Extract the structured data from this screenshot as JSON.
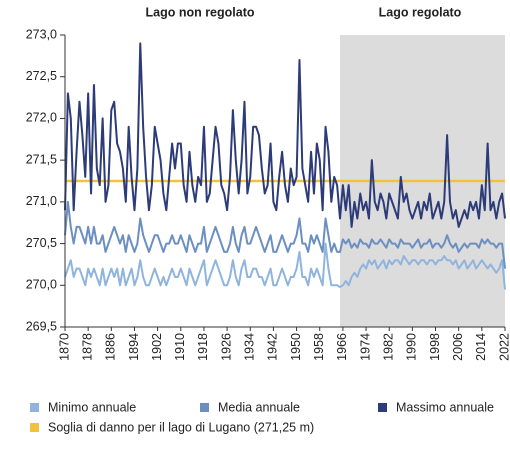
{
  "chart_data": {
    "type": "line",
    "annotations": [
      "Lago non regolato",
      "Lago regolato"
    ],
    "shade_xlim": [
      1965,
      2022
    ],
    "shade_color": "#dcdcdc",
    "xlim": [
      1870,
      2022
    ],
    "xticks": [
      1870,
      1878,
      1886,
      1894,
      1902,
      1910,
      1918,
      1926,
      1934,
      1942,
      1950,
      1958,
      1966,
      1974,
      1982,
      1990,
      1998,
      2006,
      2014,
      2022
    ],
    "ylim": [
      269.5,
      273.0
    ],
    "yticks": [
      {
        "value": 269.5,
        "label": "269,5"
      },
      {
        "value": 270.0,
        "label": "270,0"
      },
      {
        "value": 270.5,
        "label": "270,5"
      },
      {
        "value": 271.0,
        "label": "271,0"
      },
      {
        "value": 271.5,
        "label": "271,5"
      },
      {
        "value": 272.0,
        "label": "272,0"
      },
      {
        "value": 272.5,
        "label": "272,5"
      },
      {
        "value": 273.0,
        "label": "273,0"
      }
    ],
    "threshold": {
      "value": 271.25,
      "color": "#f2c23c",
      "label": "Soglia di danno per il lago di Lugano (271,25 m)"
    },
    "x": [
      1870,
      1871,
      1872,
      1873,
      1874,
      1875,
      1876,
      1877,
      1878,
      1879,
      1880,
      1881,
      1882,
      1883,
      1884,
      1885,
      1886,
      1887,
      1888,
      1889,
      1890,
      1891,
      1892,
      1893,
      1894,
      1895,
      1896,
      1897,
      1898,
      1899,
      1900,
      1901,
      1902,
      1903,
      1904,
      1905,
      1906,
      1907,
      1908,
      1909,
      1910,
      1911,
      1912,
      1913,
      1914,
      1915,
      1916,
      1917,
      1918,
      1919,
      1920,
      1921,
      1922,
      1923,
      1924,
      1925,
      1926,
      1927,
      1928,
      1929,
      1930,
      1931,
      1932,
      1933,
      1934,
      1935,
      1936,
      1937,
      1938,
      1939,
      1940,
      1941,
      1942,
      1943,
      1944,
      1945,
      1946,
      1947,
      1948,
      1949,
      1950,
      1951,
      1952,
      1953,
      1954,
      1955,
      1956,
      1957,
      1958,
      1959,
      1960,
      1961,
      1962,
      1963,
      1964,
      1965,
      1966,
      1967,
      1968,
      1969,
      1970,
      1971,
      1972,
      1973,
      1974,
      1975,
      1976,
      1977,
      1978,
      1979,
      1980,
      1981,
      1982,
      1983,
      1984,
      1985,
      1986,
      1987,
      1988,
      1989,
      1990,
      1991,
      1992,
      1993,
      1994,
      1995,
      1996,
      1997,
      1998,
      1999,
      2000,
      2001,
      2002,
      2003,
      2004,
      2005,
      2006,
      2007,
      2008,
      2009,
      2010,
      2011,
      2012,
      2013,
      2014,
      2015,
      2016,
      2017,
      2018,
      2019,
      2020,
      2021,
      2022
    ],
    "series": [
      {
        "name": "Minimo annuale",
        "color": "#8fb4dd",
        "values": [
          270.1,
          270.2,
          270.3,
          270.1,
          270.2,
          270.2,
          270.1,
          270.0,
          270.2,
          270.1,
          270.2,
          270.1,
          270.0,
          270.2,
          270.0,
          270.1,
          270.2,
          270.1,
          270.2,
          270.0,
          270.2,
          270.0,
          270.1,
          270.2,
          270.0,
          270.1,
          270.3,
          270.1,
          270.0,
          270.0,
          270.1,
          270.2,
          270.1,
          270.0,
          270.1,
          270.0,
          270.1,
          270.2,
          270.1,
          270.1,
          270.2,
          270.1,
          270.0,
          270.2,
          270.1,
          270.0,
          270.1,
          270.2,
          270.3,
          270.0,
          270.1,
          270.2,
          270.3,
          270.2,
          270.1,
          270.0,
          270.0,
          270.1,
          270.3,
          270.1,
          270.0,
          270.2,
          270.3,
          270.1,
          270.1,
          270.2,
          270.2,
          270.1,
          270.1,
          270.0,
          270.1,
          270.2,
          270.0,
          270.0,
          270.1,
          270.2,
          270.1,
          270.0,
          270.1,
          270.1,
          270.2,
          270.4,
          270.1,
          270.1,
          270.0,
          270.2,
          270.1,
          270.2,
          270.1,
          270.0,
          270.5,
          270.2,
          270.0,
          270.0,
          270.0,
          269.98,
          270.0,
          270.05,
          270.0,
          270.1,
          270.15,
          270.1,
          270.2,
          270.25,
          270.2,
          270.3,
          270.25,
          270.3,
          270.2,
          270.25,
          270.3,
          270.2,
          270.3,
          270.25,
          270.3,
          270.3,
          270.25,
          270.35,
          270.3,
          270.25,
          270.3,
          270.3,
          270.25,
          270.3,
          270.3,
          270.25,
          270.3,
          270.3,
          270.25,
          270.3,
          270.3,
          270.35,
          270.3,
          270.3,
          270.25,
          270.3,
          270.2,
          270.25,
          270.3,
          270.2,
          270.25,
          270.3,
          270.2,
          270.25,
          270.3,
          270.25,
          270.2,
          270.25,
          270.2,
          270.15,
          270.2,
          270.3,
          269.95
        ]
      },
      {
        "name": "Media annuale",
        "color": "#6b8fc0",
        "values": [
          270.6,
          271.0,
          270.7,
          270.5,
          270.7,
          270.7,
          270.6,
          270.5,
          270.7,
          270.5,
          270.7,
          270.5,
          270.5,
          270.6,
          270.4,
          270.5,
          270.6,
          270.7,
          270.6,
          270.5,
          270.6,
          270.4,
          270.6,
          270.5,
          270.4,
          270.5,
          270.8,
          270.6,
          270.5,
          270.4,
          270.5,
          270.6,
          270.6,
          270.5,
          270.4,
          270.5,
          270.5,
          270.6,
          270.5,
          270.5,
          270.6,
          270.5,
          270.4,
          270.6,
          270.5,
          270.4,
          270.5,
          270.5,
          270.7,
          270.4,
          270.5,
          270.6,
          270.7,
          270.6,
          270.5,
          270.4,
          270.4,
          270.5,
          270.7,
          270.5,
          270.4,
          270.6,
          270.7,
          270.5,
          270.5,
          270.6,
          270.7,
          270.6,
          270.5,
          270.4,
          270.5,
          270.6,
          270.4,
          270.4,
          270.5,
          270.6,
          270.5,
          270.4,
          270.5,
          270.5,
          270.6,
          270.8,
          270.5,
          270.5,
          270.4,
          270.6,
          270.5,
          270.6,
          270.5,
          270.4,
          270.8,
          270.6,
          270.4,
          270.5,
          270.4,
          270.4,
          270.55,
          270.5,
          270.55,
          270.45,
          270.5,
          270.45,
          270.55,
          270.5,
          270.5,
          270.45,
          270.55,
          270.5,
          270.5,
          270.55,
          270.5,
          270.45,
          270.55,
          270.5,
          270.5,
          270.45,
          270.55,
          270.5,
          270.5,
          270.5,
          270.45,
          270.5,
          270.55,
          270.45,
          270.5,
          270.5,
          270.55,
          270.45,
          270.5,
          270.5,
          270.45,
          270.5,
          270.6,
          270.5,
          270.45,
          270.5,
          270.4,
          270.45,
          270.5,
          270.45,
          270.5,
          270.5,
          270.5,
          270.45,
          270.55,
          270.5,
          270.55,
          270.5,
          270.5,
          270.45,
          270.5,
          270.5,
          270.2
        ]
      },
      {
        "name": "Massimo annuale",
        "color": "#2d3c78",
        "values": [
          270.9,
          272.3,
          272.0,
          270.9,
          271.6,
          272.2,
          271.8,
          271.3,
          272.3,
          271.1,
          272.4,
          271.4,
          271.2,
          272.0,
          271.0,
          271.2,
          272.1,
          272.2,
          271.7,
          271.6,
          271.4,
          271.0,
          271.9,
          271.3,
          270.9,
          271.4,
          272.9,
          271.9,
          271.3,
          270.9,
          271.2,
          271.9,
          271.7,
          271.5,
          271.1,
          270.9,
          271.3,
          271.7,
          271.4,
          271.7,
          271.7,
          271.2,
          271.0,
          271.6,
          271.2,
          271.0,
          271.3,
          271.2,
          271.9,
          271.0,
          271.1,
          271.5,
          271.9,
          271.7,
          271.2,
          271.1,
          270.9,
          271.3,
          272.1,
          271.5,
          271.1,
          271.5,
          272.2,
          271.1,
          271.3,
          271.9,
          271.9,
          271.8,
          271.4,
          271.1,
          271.2,
          271.7,
          271.0,
          270.9,
          271.3,
          271.6,
          271.2,
          271.0,
          271.4,
          271.2,
          271.3,
          272.7,
          271.4,
          271.2,
          271.0,
          271.6,
          271.1,
          271.7,
          271.5,
          270.9,
          271.9,
          271.6,
          271.0,
          271.3,
          271.2,
          270.8,
          271.2,
          270.9,
          271.2,
          270.7,
          271.0,
          270.8,
          271.1,
          270.9,
          271.0,
          270.8,
          271.5,
          271.0,
          270.9,
          271.1,
          271.0,
          270.8,
          271.1,
          271.0,
          270.9,
          270.8,
          271.3,
          271.0,
          271.1,
          270.9,
          270.8,
          270.9,
          271.0,
          270.8,
          271.0,
          270.9,
          271.1,
          270.8,
          270.9,
          271.0,
          270.8,
          271.0,
          271.8,
          271.0,
          270.8,
          270.9,
          270.7,
          270.8,
          270.9,
          270.8,
          271.0,
          270.9,
          271.0,
          270.8,
          271.2,
          270.9,
          271.7,
          270.9,
          271.0,
          270.8,
          271.0,
          271.1,
          270.8
        ]
      }
    ]
  }
}
